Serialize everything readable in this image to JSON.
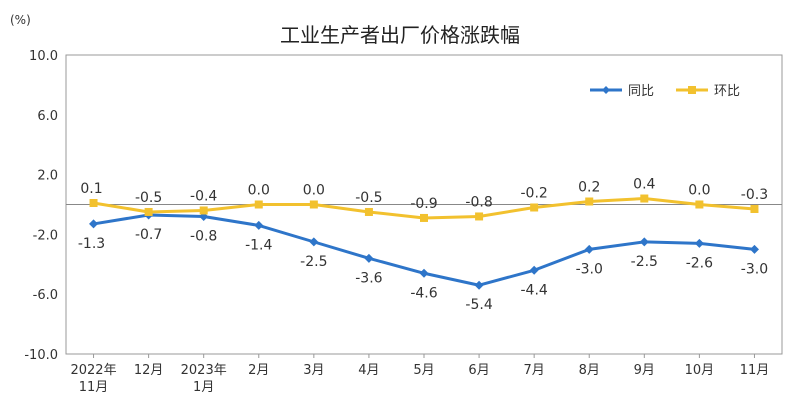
{
  "chart_data": {
    "type": "line",
    "title": "工业生产者出厂价格涨跌幅",
    "unit": "(%)",
    "categories": [
      [
        "2022年",
        "11月"
      ],
      [
        "12月"
      ],
      [
        "2023年",
        "1月"
      ],
      [
        "2月"
      ],
      [
        "3月"
      ],
      [
        "4月"
      ],
      [
        "5月"
      ],
      [
        "6月"
      ],
      [
        "7月"
      ],
      [
        "8月"
      ],
      [
        "9月"
      ],
      [
        "10月"
      ],
      [
        "11月"
      ]
    ],
    "ylim": [
      -10.0,
      10.0
    ],
    "yticks": [
      "10.0",
      "6.0",
      "2.0",
      "-2.0",
      "-6.0",
      "-10.0"
    ],
    "ytick_values": [
      10,
      6,
      2,
      -2,
      -6,
      -10
    ],
    "grid": false,
    "legend_position": "top-right",
    "series": [
      {
        "name": "同比",
        "color": "#2e75c9",
        "marker": "diamond",
        "values": [
          -1.3,
          -0.7,
          -0.8,
          -1.4,
          -2.5,
          -3.6,
          -4.6,
          -5.4,
          -4.4,
          -3.0,
          -2.5,
          -2.6,
          -3.0
        ],
        "labels": [
          "-1.3",
          "-0.7",
          "-0.8",
          "-1.4",
          "-2.5",
          "-3.6",
          "-4.6",
          "-5.4",
          "-4.4",
          "-3.0",
          "-2.5",
          "-2.6",
          "-3.0"
        ],
        "label_position": "below"
      },
      {
        "name": "环比",
        "color": "#f2c12e",
        "marker": "square",
        "values": [
          0.1,
          -0.5,
          -0.4,
          0.0,
          0.0,
          -0.5,
          -0.9,
          -0.8,
          -0.2,
          0.2,
          0.4,
          0.0,
          -0.3
        ],
        "labels": [
          "0.1",
          "-0.5",
          "-0.4",
          "0.0",
          "0.0",
          "-0.5",
          "-0.9",
          "-0.8",
          "-0.2",
          "0.2",
          "0.4",
          "0.0",
          "-0.3"
        ],
        "label_position": "above"
      }
    ]
  }
}
